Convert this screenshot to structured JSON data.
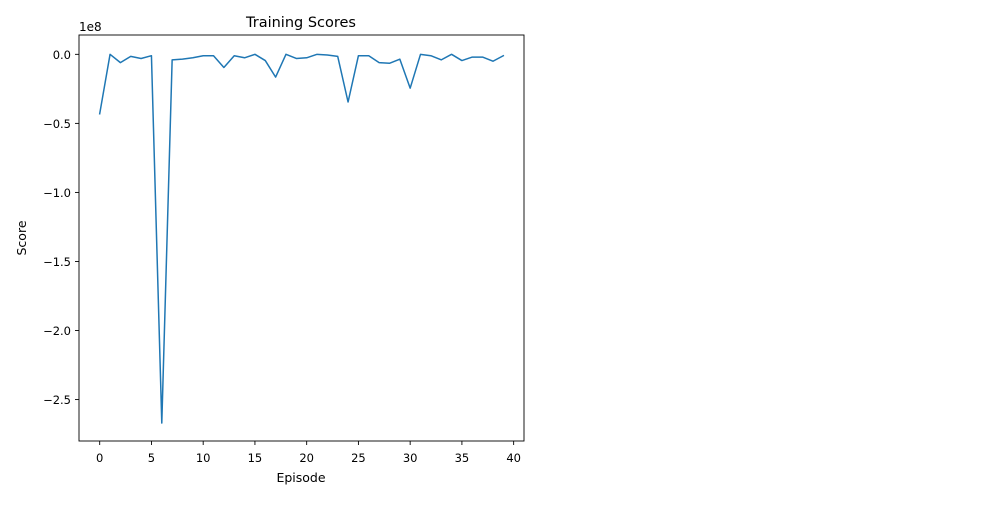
{
  "chart_data": {
    "type": "line",
    "title": "Training Scores",
    "xlabel": "Episode",
    "ylabel": "Score",
    "y_offset_label": "1e8",
    "y_scale_factor": 100000000,
    "xlim": [
      -2,
      41
    ],
    "ylim": [
      -2.8,
      0.14
    ],
    "x_ticks": [
      0,
      5,
      10,
      15,
      20,
      25,
      30,
      35,
      40
    ],
    "x_tick_labels": [
      "0",
      "5",
      "10",
      "15",
      "20",
      "25",
      "30",
      "35",
      "40"
    ],
    "y_ticks": [
      0.0,
      -0.5,
      -1.0,
      -1.5,
      -2.0,
      -2.5
    ],
    "y_tick_labels": [
      "0.0",
      "−0.5",
      "−1.0",
      "−1.5",
      "−2.0",
      "−2.5"
    ],
    "grid": false,
    "line_color": "#1f77b4",
    "series": [
      {
        "x": [
          0,
          1,
          2,
          3,
          4,
          5,
          6,
          7,
          8,
          9,
          10,
          11,
          12,
          13,
          14,
          15,
          16,
          17,
          18,
          19,
          20,
          21,
          22,
          23,
          24,
          25,
          26,
          27,
          28,
          29,
          30,
          31,
          32,
          33,
          34,
          35,
          36,
          37,
          38,
          39
        ],
        "values": [
          -0.43,
          0.0,
          -0.06,
          -0.015,
          -0.03,
          -0.01,
          -2.67,
          -0.04,
          -0.035,
          -0.025,
          -0.01,
          -0.01,
          -0.095,
          -0.01,
          -0.025,
          0.0,
          -0.045,
          -0.165,
          0.0,
          -0.03,
          -0.025,
          0.0,
          -0.005,
          -0.015,
          -0.345,
          -0.01,
          -0.01,
          -0.06,
          -0.065,
          -0.035,
          -0.245,
          0.0,
          -0.01,
          -0.04,
          0.0,
          -0.045,
          -0.02,
          -0.02,
          -0.05,
          -0.01
        ]
      }
    ]
  }
}
